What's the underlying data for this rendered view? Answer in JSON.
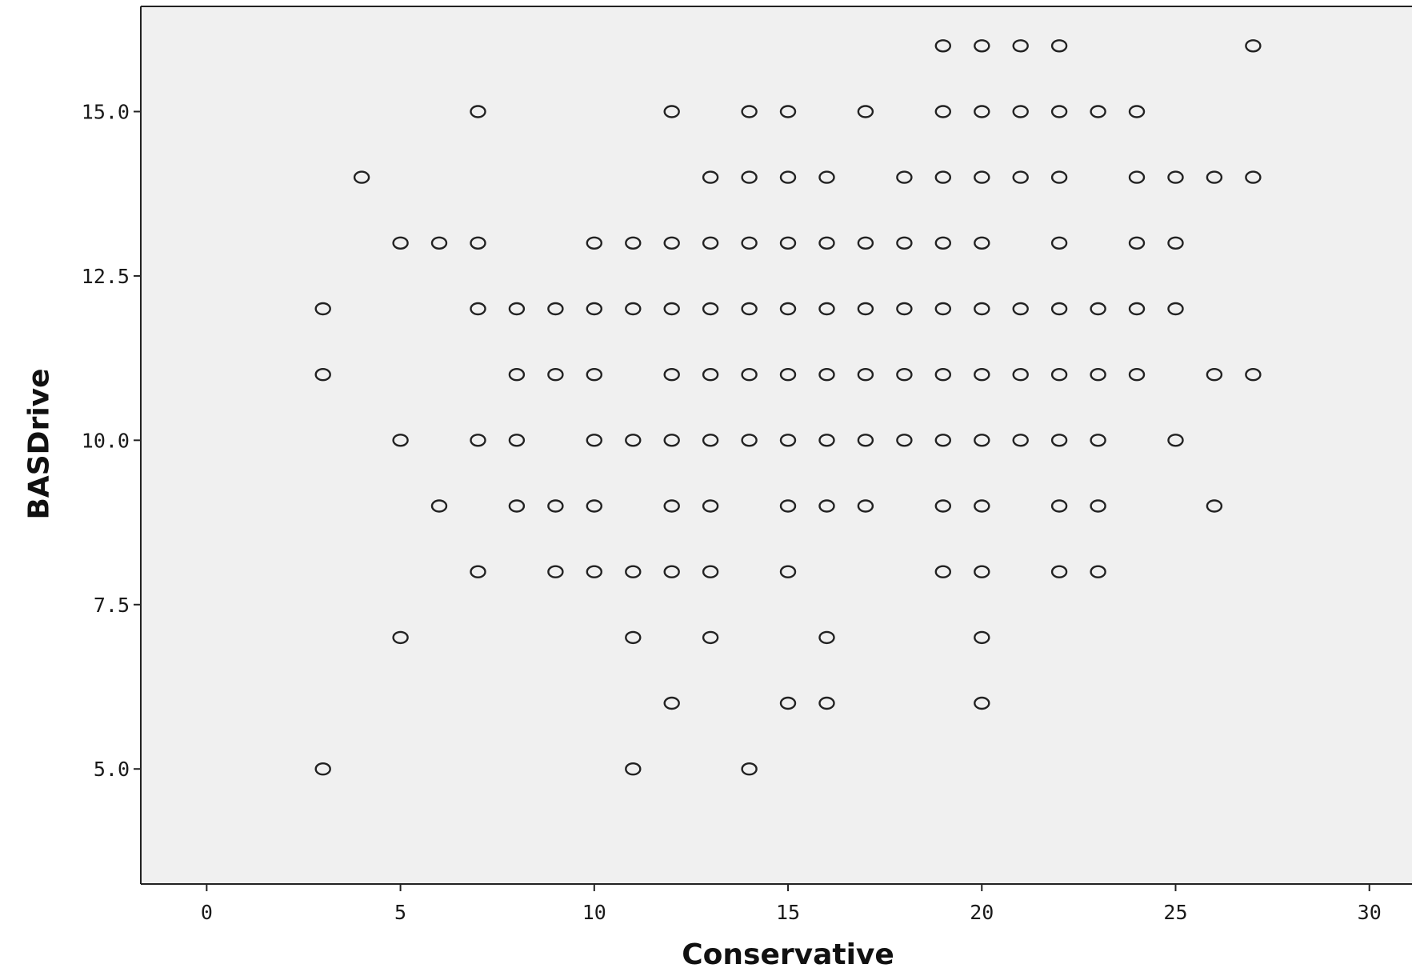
{
  "chart_data": {
    "type": "scatter",
    "title": "",
    "xlabel": "Conservative",
    "ylabel": "BASDrive",
    "xlim": [
      -1.7,
      31.1
    ],
    "ylim": [
      3.25,
      16.6
    ],
    "x_ticks": [
      0,
      5,
      10,
      15,
      20,
      25,
      30
    ],
    "x_tick_labels": [
      "0",
      "5",
      "10",
      "15",
      "20",
      "25",
      "30"
    ],
    "y_ticks": [
      5,
      7.5,
      10,
      12.5,
      15
    ],
    "y_tick_labels": [
      "5.0",
      "7.5",
      "10.0",
      "12.5",
      "15.0"
    ],
    "grid": false,
    "marker": "hollow-circle",
    "colors": {
      "plot_background": "#f0f0f0",
      "marker": "#222222",
      "axis": "#222222"
    },
    "points": [
      [
        19,
        16
      ],
      [
        20,
        16
      ],
      [
        21,
        16
      ],
      [
        22,
        16
      ],
      [
        27,
        16
      ],
      [
        7,
        15
      ],
      [
        12,
        15
      ],
      [
        14,
        15
      ],
      [
        15,
        15
      ],
      [
        17,
        15
      ],
      [
        19,
        15
      ],
      [
        20,
        15
      ],
      [
        21,
        15
      ],
      [
        22,
        15
      ],
      [
        23,
        15
      ],
      [
        24,
        15
      ],
      [
        4,
        14
      ],
      [
        13,
        14
      ],
      [
        14,
        14
      ],
      [
        15,
        14
      ],
      [
        16,
        14
      ],
      [
        18,
        14
      ],
      [
        19,
        14
      ],
      [
        20,
        14
      ],
      [
        21,
        14
      ],
      [
        22,
        14
      ],
      [
        24,
        14
      ],
      [
        25,
        14
      ],
      [
        26,
        14
      ],
      [
        27,
        14
      ],
      [
        5,
        13
      ],
      [
        6,
        13
      ],
      [
        7,
        13
      ],
      [
        10,
        13
      ],
      [
        11,
        13
      ],
      [
        12,
        13
      ],
      [
        13,
        13
      ],
      [
        14,
        13
      ],
      [
        15,
        13
      ],
      [
        16,
        13
      ],
      [
        17,
        13
      ],
      [
        18,
        13
      ],
      [
        19,
        13
      ],
      [
        20,
        13
      ],
      [
        22,
        13
      ],
      [
        24,
        13
      ],
      [
        25,
        13
      ],
      [
        3,
        12
      ],
      [
        7,
        12
      ],
      [
        8,
        12
      ],
      [
        9,
        12
      ],
      [
        10,
        12
      ],
      [
        11,
        12
      ],
      [
        12,
        12
      ],
      [
        13,
        12
      ],
      [
        14,
        12
      ],
      [
        15,
        12
      ],
      [
        16,
        12
      ],
      [
        17,
        12
      ],
      [
        18,
        12
      ],
      [
        19,
        12
      ],
      [
        20,
        12
      ],
      [
        21,
        12
      ],
      [
        22,
        12
      ],
      [
        23,
        12
      ],
      [
        24,
        12
      ],
      [
        25,
        12
      ],
      [
        3,
        11
      ],
      [
        8,
        11
      ],
      [
        9,
        11
      ],
      [
        10,
        11
      ],
      [
        12,
        11
      ],
      [
        13,
        11
      ],
      [
        14,
        11
      ],
      [
        15,
        11
      ],
      [
        16,
        11
      ],
      [
        17,
        11
      ],
      [
        18,
        11
      ],
      [
        19,
        11
      ],
      [
        20,
        11
      ],
      [
        21,
        11
      ],
      [
        22,
        11
      ],
      [
        23,
        11
      ],
      [
        24,
        11
      ],
      [
        26,
        11
      ],
      [
        27,
        11
      ],
      [
        5,
        10
      ],
      [
        7,
        10
      ],
      [
        8,
        10
      ],
      [
        10,
        10
      ],
      [
        11,
        10
      ],
      [
        12,
        10
      ],
      [
        13,
        10
      ],
      [
        14,
        10
      ],
      [
        15,
        10
      ],
      [
        16,
        10
      ],
      [
        17,
        10
      ],
      [
        18,
        10
      ],
      [
        19,
        10
      ],
      [
        20,
        10
      ],
      [
        21,
        10
      ],
      [
        22,
        10
      ],
      [
        23,
        10
      ],
      [
        25,
        10
      ],
      [
        6,
        9
      ],
      [
        8,
        9
      ],
      [
        9,
        9
      ],
      [
        10,
        9
      ],
      [
        12,
        9
      ],
      [
        13,
        9
      ],
      [
        15,
        9
      ],
      [
        16,
        9
      ],
      [
        17,
        9
      ],
      [
        19,
        9
      ],
      [
        20,
        9
      ],
      [
        22,
        9
      ],
      [
        23,
        9
      ],
      [
        26,
        9
      ],
      [
        7,
        8
      ],
      [
        9,
        8
      ],
      [
        10,
        8
      ],
      [
        11,
        8
      ],
      [
        12,
        8
      ],
      [
        13,
        8
      ],
      [
        15,
        8
      ],
      [
        19,
        8
      ],
      [
        20,
        8
      ],
      [
        22,
        8
      ],
      [
        23,
        8
      ],
      [
        5,
        7
      ],
      [
        11,
        7
      ],
      [
        13,
        7
      ],
      [
        16,
        7
      ],
      [
        20,
        7
      ],
      [
        12,
        6
      ],
      [
        15,
        6
      ],
      [
        16,
        6
      ],
      [
        20,
        6
      ],
      [
        3,
        5
      ],
      [
        11,
        5
      ],
      [
        14,
        5
      ]
    ]
  }
}
